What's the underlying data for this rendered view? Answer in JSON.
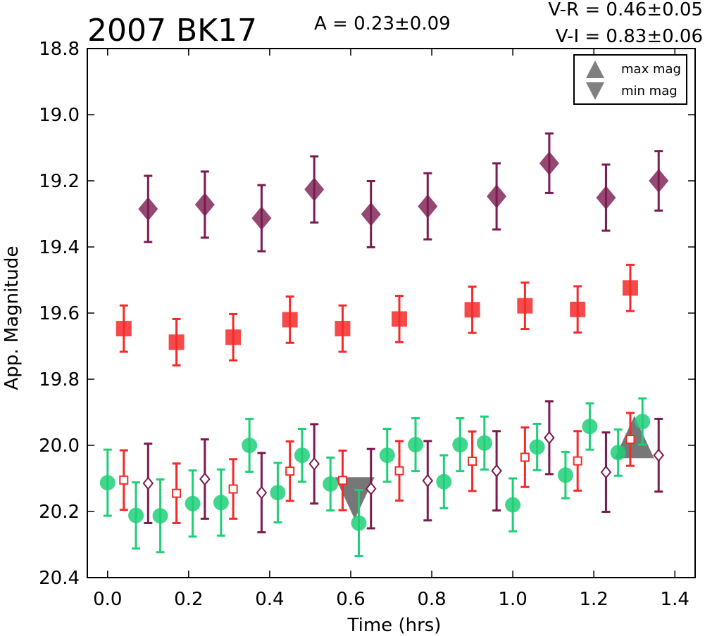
{
  "chart_data": {
    "type": "scatter",
    "title": "2007 BK17",
    "annotations": {
      "amplitude": "A  = 0.23±0.09",
      "color_vr": "V-R = 0.46±0.05",
      "color_vi": "V-I  = 0.83±0.06"
    },
    "xlabel": "Time (hrs)",
    "ylabel": "App. Magnitude",
    "xlim": [
      -0.05,
      1.45
    ],
    "ylim": [
      18.8,
      20.4
    ],
    "y_inverted": true,
    "x_ticks": [
      "0.0",
      "0.2",
      "0.4",
      "0.6",
      "0.8",
      "1.0",
      "1.2",
      "1.4"
    ],
    "y_ticks": [
      "18.8",
      "19.0",
      "19.2",
      "19.4",
      "19.6",
      "19.8",
      "20.0",
      "20.2",
      "20.4"
    ],
    "grid": false,
    "legend": {
      "position": "top-right",
      "entries": [
        {
          "label": "max mag",
          "marker": "triangle-up"
        },
        {
          "label": "min mag",
          "marker": "triangle-down"
        }
      ]
    },
    "colors": {
      "diamond": "#7b1a4f",
      "square": "#f52a2a",
      "circle": "#1fcf78",
      "extrema": "#555555"
    },
    "series": [
      {
        "marker": "diamond-filled",
        "color": "#7b1a4f",
        "points": [
          {
            "x": 0.1,
            "y": 19.285,
            "err": 0.1
          },
          {
            "x": 0.24,
            "y": 19.272,
            "err": 0.1
          },
          {
            "x": 0.38,
            "y": 19.313,
            "err": 0.1
          },
          {
            "x": 0.51,
            "y": 19.226,
            "err": 0.1
          },
          {
            "x": 0.65,
            "y": 19.301,
            "err": 0.1
          },
          {
            "x": 0.79,
            "y": 19.277,
            "err": 0.1
          },
          {
            "x": 0.96,
            "y": 19.247,
            "err": 0.1
          },
          {
            "x": 1.09,
            "y": 19.147,
            "err": 0.09
          },
          {
            "x": 1.23,
            "y": 19.251,
            "err": 0.1
          },
          {
            "x": 1.36,
            "y": 19.2,
            "err": 0.09
          }
        ]
      },
      {
        "marker": "square-filled",
        "color": "#f52a2a",
        "points": [
          {
            "x": 0.04,
            "y": 19.647,
            "err": 0.07
          },
          {
            "x": 0.17,
            "y": 19.688,
            "err": 0.07
          },
          {
            "x": 0.31,
            "y": 19.673,
            "err": 0.07
          },
          {
            "x": 0.45,
            "y": 19.62,
            "err": 0.07
          },
          {
            "x": 0.58,
            "y": 19.647,
            "err": 0.07
          },
          {
            "x": 0.72,
            "y": 19.618,
            "err": 0.07
          },
          {
            "x": 0.9,
            "y": 19.59,
            "err": 0.07
          },
          {
            "x": 1.03,
            "y": 19.578,
            "err": 0.07
          },
          {
            "x": 1.16,
            "y": 19.589,
            "err": 0.07
          },
          {
            "x": 1.29,
            "y": 19.524,
            "err": 0.07
          }
        ]
      },
      {
        "marker": "circle-filled",
        "color": "#1fcf78",
        "points": [
          {
            "x": 0.0,
            "y": 20.113,
            "err": 0.1
          },
          {
            "x": 0.07,
            "y": 20.212,
            "err": 0.1
          },
          {
            "x": 0.13,
            "y": 20.213,
            "err": 0.11
          },
          {
            "x": 0.21,
            "y": 20.176,
            "err": 0.1
          },
          {
            "x": 0.28,
            "y": 20.173,
            "err": 0.1
          },
          {
            "x": 0.35,
            "y": 20.0,
            "err": 0.08
          },
          {
            "x": 0.42,
            "y": 20.143,
            "err": 0.09
          },
          {
            "x": 0.48,
            "y": 20.03,
            "err": 0.08
          },
          {
            "x": 0.55,
            "y": 20.117,
            "err": 0.08
          },
          {
            "x": 0.62,
            "y": 20.235,
            "err": 0.1
          },
          {
            "x": 0.69,
            "y": 20.03,
            "err": 0.08
          },
          {
            "x": 0.76,
            "y": 19.998,
            "err": 0.08
          },
          {
            "x": 0.83,
            "y": 20.11,
            "err": 0.08
          },
          {
            "x": 0.87,
            "y": 19.998,
            "err": 0.08
          },
          {
            "x": 0.93,
            "y": 19.993,
            "err": 0.08
          },
          {
            "x": 1.0,
            "y": 20.18,
            "err": 0.08
          },
          {
            "x": 1.06,
            "y": 20.005,
            "err": 0.07
          },
          {
            "x": 1.13,
            "y": 20.09,
            "err": 0.07
          },
          {
            "x": 1.19,
            "y": 19.943,
            "err": 0.07
          },
          {
            "x": 1.26,
            "y": 20.022,
            "err": 0.07
          },
          {
            "x": 1.32,
            "y": 19.928,
            "err": 0.07
          }
        ]
      },
      {
        "marker": "square-open",
        "color": "#f52a2a",
        "points": [
          {
            "x": 0.04,
            "y": 20.105,
            "err": 0.09
          },
          {
            "x": 0.17,
            "y": 20.145,
            "err": 0.09
          },
          {
            "x": 0.31,
            "y": 20.132,
            "err": 0.09
          },
          {
            "x": 0.45,
            "y": 20.078,
            "err": 0.09
          },
          {
            "x": 0.58,
            "y": 20.106,
            "err": 0.09
          },
          {
            "x": 0.72,
            "y": 20.077,
            "err": 0.09
          },
          {
            "x": 0.9,
            "y": 20.048,
            "err": 0.09
          },
          {
            "x": 1.03,
            "y": 20.036,
            "err": 0.09
          },
          {
            "x": 1.16,
            "y": 20.047,
            "err": 0.09
          },
          {
            "x": 1.29,
            "y": 19.982,
            "err": 0.08
          }
        ]
      },
      {
        "marker": "diamond-open",
        "color": "#7b1a4f",
        "points": [
          {
            "x": 0.1,
            "y": 20.115,
            "err": 0.12
          },
          {
            "x": 0.24,
            "y": 20.102,
            "err": 0.12
          },
          {
            "x": 0.38,
            "y": 20.143,
            "err": 0.12
          },
          {
            "x": 0.51,
            "y": 20.056,
            "err": 0.12
          },
          {
            "x": 0.65,
            "y": 20.131,
            "err": 0.12
          },
          {
            "x": 0.79,
            "y": 20.107,
            "err": 0.12
          },
          {
            "x": 0.96,
            "y": 20.077,
            "err": 0.12
          },
          {
            "x": 1.09,
            "y": 19.977,
            "err": 0.11
          },
          {
            "x": 1.23,
            "y": 20.081,
            "err": 0.12
          },
          {
            "x": 1.36,
            "y": 20.03,
            "err": 0.11
          }
        ]
      }
    ],
    "extrema": [
      {
        "label": "max mag",
        "marker": "triangle-up",
        "x": 1.3,
        "y": 19.975
      },
      {
        "label": "min mag",
        "marker": "triangle-down",
        "x": 0.61,
        "y": 20.16
      }
    ]
  }
}
